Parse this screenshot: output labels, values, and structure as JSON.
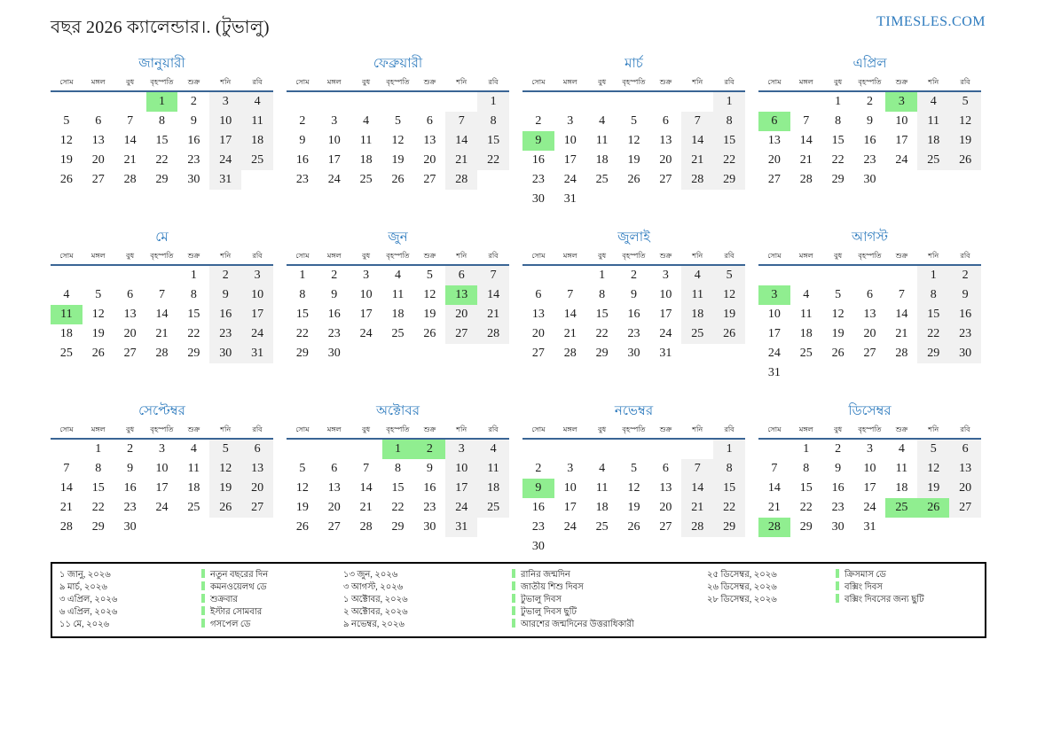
{
  "header": {
    "title": "বছর 2026 ক্যালেন্ডার।. (টুভালু)",
    "site": "TIMESLES.COM"
  },
  "day_headers": [
    "সোম",
    "মঙ্গল",
    "বুধ",
    "বৃহস্পতি",
    "শুক্র",
    "শনি",
    "রবি"
  ],
  "months": [
    {
      "id": "january",
      "name": "জানুয়ারী",
      "weeks": [
        [
          "",
          "",
          "",
          1,
          2,
          3,
          4
        ],
        [
          5,
          6,
          7,
          8,
          9,
          10,
          11
        ],
        [
          12,
          13,
          14,
          15,
          16,
          17,
          18
        ],
        [
          19,
          20,
          21,
          22,
          23,
          24,
          25
        ],
        [
          26,
          27,
          28,
          29,
          30,
          31,
          ""
        ]
      ],
      "holidays": [
        1
      ]
    },
    {
      "id": "february",
      "name": "ফেব্রুয়ারী",
      "weeks": [
        [
          "",
          "",
          "",
          "",
          "",
          "",
          1
        ],
        [
          2,
          3,
          4,
          5,
          6,
          7,
          8
        ],
        [
          9,
          10,
          11,
          12,
          13,
          14,
          15
        ],
        [
          16,
          17,
          18,
          19,
          20,
          21,
          22
        ],
        [
          23,
          24,
          25,
          26,
          27,
          28,
          ""
        ]
      ],
      "holidays": []
    },
    {
      "id": "march",
      "name": "মার্চ",
      "weeks": [
        [
          "",
          "",
          "",
          "",
          "",
          "",
          1
        ],
        [
          2,
          3,
          4,
          5,
          6,
          7,
          8
        ],
        [
          9,
          10,
          11,
          12,
          13,
          14,
          15
        ],
        [
          16,
          17,
          18,
          19,
          20,
          21,
          22
        ],
        [
          23,
          24,
          25,
          26,
          27,
          28,
          29
        ],
        [
          30,
          31,
          "",
          "",
          "",
          "",
          ""
        ]
      ],
      "holidays": [
        9
      ]
    },
    {
      "id": "april",
      "name": "এপ্রিল",
      "weeks": [
        [
          "",
          "",
          1,
          2,
          3,
          4,
          5
        ],
        [
          6,
          7,
          8,
          9,
          10,
          11,
          12
        ],
        [
          13,
          14,
          15,
          16,
          17,
          18,
          19
        ],
        [
          20,
          21,
          22,
          23,
          24,
          25,
          26
        ],
        [
          27,
          28,
          29,
          30,
          "",
          "",
          ""
        ]
      ],
      "holidays": [
        3,
        6
      ]
    },
    {
      "id": "may",
      "name": "মে",
      "weeks": [
        [
          "",
          "",
          "",
          "",
          1,
          2,
          3
        ],
        [
          4,
          5,
          6,
          7,
          8,
          9,
          10
        ],
        [
          11,
          12,
          13,
          14,
          15,
          16,
          17
        ],
        [
          18,
          19,
          20,
          21,
          22,
          23,
          24
        ],
        [
          25,
          26,
          27,
          28,
          29,
          30,
          31
        ]
      ],
      "holidays": [
        11
      ]
    },
    {
      "id": "june",
      "name": "জুন",
      "weeks": [
        [
          1,
          2,
          3,
          4,
          5,
          6,
          7
        ],
        [
          8,
          9,
          10,
          11,
          12,
          13,
          14
        ],
        [
          15,
          16,
          17,
          18,
          19,
          20,
          21
        ],
        [
          22,
          23,
          24,
          25,
          26,
          27,
          28
        ],
        [
          29,
          30,
          "",
          "",
          "",
          "",
          ""
        ]
      ],
      "holidays": [
        13
      ]
    },
    {
      "id": "july",
      "name": "জুলাই",
      "weeks": [
        [
          "",
          "",
          1,
          2,
          3,
          4,
          5
        ],
        [
          6,
          7,
          8,
          9,
          10,
          11,
          12
        ],
        [
          13,
          14,
          15,
          16,
          17,
          18,
          19
        ],
        [
          20,
          21,
          22,
          23,
          24,
          25,
          26
        ],
        [
          27,
          28,
          29,
          30,
          31,
          "",
          ""
        ]
      ],
      "holidays": []
    },
    {
      "id": "august",
      "name": "আগস্ট",
      "weeks": [
        [
          "",
          "",
          "",
          "",
          "",
          1,
          2
        ],
        [
          3,
          4,
          5,
          6,
          7,
          8,
          9
        ],
        [
          10,
          11,
          12,
          13,
          14,
          15,
          16
        ],
        [
          17,
          18,
          19,
          20,
          21,
          22,
          23
        ],
        [
          24,
          25,
          26,
          27,
          28,
          29,
          30
        ],
        [
          31,
          "",
          "",
          "",
          "",
          "",
          ""
        ]
      ],
      "holidays": [
        3
      ]
    },
    {
      "id": "september",
      "name": "সেপ্টেম্বর",
      "weeks": [
        [
          "",
          1,
          2,
          3,
          4,
          5,
          6
        ],
        [
          7,
          8,
          9,
          10,
          11,
          12,
          13
        ],
        [
          14,
          15,
          16,
          17,
          18,
          19,
          20
        ],
        [
          21,
          22,
          23,
          24,
          25,
          26,
          27
        ],
        [
          28,
          29,
          30,
          "",
          "",
          "",
          ""
        ]
      ],
      "holidays": []
    },
    {
      "id": "october",
      "name": "অক্টোবর",
      "weeks": [
        [
          "",
          "",
          "",
          1,
          2,
          3,
          4
        ],
        [
          5,
          6,
          7,
          8,
          9,
          10,
          11
        ],
        [
          12,
          13,
          14,
          15,
          16,
          17,
          18
        ],
        [
          19,
          20,
          21,
          22,
          23,
          24,
          25
        ],
        [
          26,
          27,
          28,
          29,
          30,
          31,
          ""
        ]
      ],
      "holidays": [
        1,
        2
      ]
    },
    {
      "id": "november",
      "name": "নভেম্বর",
      "weeks": [
        [
          "",
          "",
          "",
          "",
          "",
          "",
          1
        ],
        [
          2,
          3,
          4,
          5,
          6,
          7,
          8
        ],
        [
          9,
          10,
          11,
          12,
          13,
          14,
          15
        ],
        [
          16,
          17,
          18,
          19,
          20,
          21,
          22
        ],
        [
          23,
          24,
          25,
          26,
          27,
          28,
          29
        ],
        [
          30,
          "",
          "",
          "",
          "",
          "",
          ""
        ]
      ],
      "holidays": [
        9
      ]
    },
    {
      "id": "december",
      "name": "ডিসেম্বর",
      "weeks": [
        [
          "",
          1,
          2,
          3,
          4,
          5,
          6
        ],
        [
          7,
          8,
          9,
          10,
          11,
          12,
          13
        ],
        [
          14,
          15,
          16,
          17,
          18,
          19,
          20
        ],
        [
          21,
          22,
          23,
          24,
          25,
          26,
          27
        ],
        [
          28,
          29,
          30,
          31,
          "",
          "",
          ""
        ]
      ],
      "holidays": [
        25,
        26,
        28
      ]
    }
  ],
  "legend": {
    "groups": [
      {
        "items": [
          {
            "date": "১ জানু, ২০২৬",
            "name": "নতুন বছরের দিন"
          },
          {
            "date": "৯ মার্চ, ২০২৬",
            "name": "কমনওয়েলথ ডে"
          },
          {
            "date": "৩ এপ্রিল, ২০২৬",
            "name": "শুক্রবার"
          },
          {
            "date": "৬ এপ্রিল, ২০২৬",
            "name": "ইস্টার সোমবার"
          },
          {
            "date": "১১ মে, ২০২৬",
            "name": "গসপেল ডে"
          }
        ]
      },
      {
        "items": [
          {
            "date": "১৩ জুন, ২০২৬",
            "name": "রানির জন্মদিন"
          },
          {
            "date": "৩ আগস্ট, ২০২৬",
            "name": "জাতীয় শিশু দিবস"
          },
          {
            "date": "১ অক্টোবর, ২০২৬",
            "name": "টুভালু দিবস"
          },
          {
            "date": "২ অক্টোবর, ২০২৬",
            "name": "টুভালু দিবস ছুটি"
          },
          {
            "date": "৯ নভেম্বর, ২০২৬",
            "name": "আরশের জন্মদিনের উত্তরাধিকারী"
          }
        ]
      },
      {
        "items": [
          {
            "date": "২৫ ডিসেম্বর, ২০২৬",
            "name": "ক্রিসমাস ডে"
          },
          {
            "date": "২৬ ডিসেম্বর, ২০২৬",
            "name": "বক্সিং দিবস"
          },
          {
            "date": "২৮ ডিসেম্বর, ২০২৬",
            "name": "বক্সিং দিবসের জন্য ছুটি"
          }
        ]
      }
    ]
  },
  "colors": {
    "accent_blue": "#2e7bbe",
    "header_line_blue": "#3a6595",
    "weekend_bg": "#f1f1f1",
    "holiday_green": "#90ee90",
    "site_link_blue": "#2b6cb0",
    "text": "#1c1c1c"
  }
}
